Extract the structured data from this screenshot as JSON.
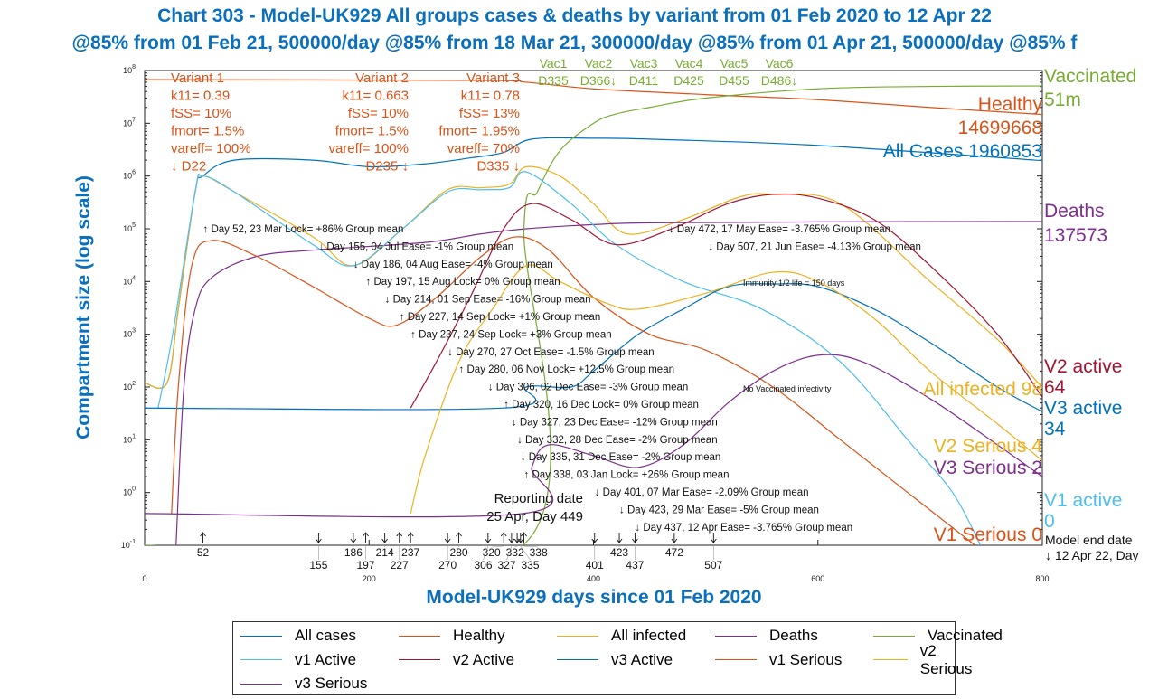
{
  "chart_data": {
    "type": "line",
    "title": "Chart 303 - Model-UK929 All groups cases & deaths by variant from 01 Feb 2020 to 12 Apr 22",
    "subtitle": "@85% from 01 Feb 21, 500000/day @85% from 18 Mar 21, 300000/day @85% from 01 Apr 21, 500000/day @85% f",
    "xlabel": "Model-UK929 days since 01 Feb 2020",
    "ylabel": "Compartment size (log scale)",
    "xlim": [
      0,
      800
    ],
    "ylim": [
      0.1,
      100000000
    ],
    "yscale": "log",
    "xticks": [
      "0",
      "200",
      "400",
      "600",
      "800"
    ],
    "yticks": [
      "10^-1",
      "10^0",
      "10^1",
      "10^2",
      "10^3",
      "10^4",
      "10^5",
      "10^6",
      "10^7",
      "10^8"
    ],
    "grid": false,
    "legend_position": "bottom",
    "series": [
      {
        "name": "All cases",
        "color": "#0072BD",
        "points": [
          [
            0,
            120
          ],
          [
            20,
            120
          ],
          [
            30,
            3000
          ],
          [
            45,
            500000
          ],
          [
            52,
            1000000
          ],
          [
            80,
            2000000
          ],
          [
            150,
            2000000
          ],
          [
            200,
            1500000
          ],
          [
            250,
            1700000
          ],
          [
            290,
            2200000
          ],
          [
            320,
            2800000
          ],
          [
            345,
            5000000
          ],
          [
            400,
            5200000
          ],
          [
            450,
            5000000
          ],
          [
            600,
            3800000
          ],
          [
            800,
            1960853
          ]
        ]
      },
      {
        "name": "Healthy",
        "color": "#D95319",
        "points": [
          [
            0,
            67000000
          ],
          [
            300,
            65000000
          ],
          [
            340,
            60000000
          ],
          [
            400,
            45000000
          ],
          [
            500,
            35000000
          ],
          [
            600,
            28000000
          ],
          [
            700,
            20000000
          ],
          [
            800,
            14699668
          ]
        ]
      },
      {
        "name": "All infected",
        "color": "#EDB120",
        "points": [
          [
            0,
            120
          ],
          [
            20,
            120
          ],
          [
            30,
            3000
          ],
          [
            45,
            500000
          ],
          [
            52,
            1000000
          ],
          [
            80,
            500000
          ],
          [
            150,
            70000
          ],
          [
            186,
            20000
          ],
          [
            230,
            100000
          ],
          [
            270,
            550000
          ],
          [
            300,
            600000
          ],
          [
            325,
            700000
          ],
          [
            340,
            1500000
          ],
          [
            370,
            1000000
          ],
          [
            400,
            300000
          ],
          [
            430,
            80000
          ],
          [
            480,
            150000
          ],
          [
            530,
            400000
          ],
          [
            560,
            450000
          ],
          [
            620,
            300000
          ],
          [
            700,
            10000
          ],
          [
            760,
            800
          ],
          [
            800,
            98
          ]
        ]
      },
      {
        "name": "Deaths",
        "color": "#7E2F8E",
        "points": [
          [
            28,
            0.1
          ],
          [
            35,
            100
          ],
          [
            45,
            3000
          ],
          [
            60,
            12000
          ],
          [
            100,
            30000
          ],
          [
            155,
            40000
          ],
          [
            250,
            55000
          ],
          [
            300,
            80000
          ],
          [
            340,
            100000
          ],
          [
            400,
            120000
          ],
          [
            450,
            130000
          ],
          [
            600,
            135000
          ],
          [
            800,
            137573
          ]
        ]
      },
      {
        "name": "Vaccinated",
        "color": "#77AC30",
        "points": [
          [
            0,
            0.1
          ],
          [
            337,
            0.1
          ],
          [
            338,
            100000
          ],
          [
            350,
            500000
          ],
          [
            370,
            3000000
          ],
          [
            400,
            10000000
          ],
          [
            420,
            15000000
          ],
          [
            450,
            20000000
          ],
          [
            500,
            30000000
          ],
          [
            600,
            45000000
          ],
          [
            700,
            50000000
          ],
          [
            800,
            51000000
          ]
        ]
      },
      {
        "name": "v1 Active",
        "color": "#4DBEEE",
        "points": [
          [
            12,
            40
          ],
          [
            25,
            1000
          ],
          [
            45,
            500000
          ],
          [
            52,
            1000000
          ],
          [
            80,
            500000
          ],
          [
            150,
            50000
          ],
          [
            186,
            20000
          ],
          [
            230,
            100000
          ],
          [
            270,
            500000
          ],
          [
            300,
            550000
          ],
          [
            325,
            600000
          ],
          [
            340,
            1200000
          ],
          [
            380,
            300000
          ],
          [
            420,
            50000
          ],
          [
            480,
            10000
          ],
          [
            550,
            3000
          ],
          [
            620,
            300
          ],
          [
            680,
            10
          ],
          [
            720,
            1
          ],
          [
            745,
            0.1
          ]
        ]
      },
      {
        "name": "v2 Active",
        "color": "#A2142F",
        "points": [
          [
            237,
            40
          ],
          [
            260,
            300
          ],
          [
            290,
            5000
          ],
          [
            320,
            100000
          ],
          [
            345,
            300000
          ],
          [
            380,
            150000
          ],
          [
            420,
            50000
          ],
          [
            470,
            100000
          ],
          [
            520,
            300000
          ],
          [
            560,
            450000
          ],
          [
            600,
            380000
          ],
          [
            650,
            150000
          ],
          [
            700,
            20000
          ],
          [
            760,
            1000
          ],
          [
            800,
            64
          ]
        ]
      },
      {
        "name": "v3 Active",
        "color": "#0072BD",
        "points": [
          [
            0,
            40
          ],
          [
            320,
            40
          ],
          [
            340,
            100
          ],
          [
            380,
            100
          ],
          [
            400,
            200
          ],
          [
            440,
            1000
          ],
          [
            480,
            3000
          ],
          [
            520,
            8000
          ],
          [
            560,
            9000
          ],
          [
            600,
            8000
          ],
          [
            650,
            3000
          ],
          [
            700,
            700
          ],
          [
            760,
            100
          ],
          [
            800,
            34
          ]
        ]
      },
      {
        "name": "v1 Serious",
        "color": "#D95319",
        "points": [
          [
            24,
            0.4
          ],
          [
            30,
            100
          ],
          [
            42,
            20000
          ],
          [
            60,
            60000
          ],
          [
            100,
            30000
          ],
          [
            150,
            8000
          ],
          [
            200,
            2000
          ],
          [
            225,
            1500
          ],
          [
            260,
            5000
          ],
          [
            300,
            30000
          ],
          [
            330,
            70000
          ],
          [
            360,
            40000
          ],
          [
            400,
            5000
          ],
          [
            450,
            1000
          ],
          [
            500,
            500
          ],
          [
            560,
            100
          ],
          [
            620,
            10
          ],
          [
            680,
            1
          ],
          [
            740,
            0.1
          ]
        ]
      },
      {
        "name": "v2 Serious",
        "color": "#EDB120",
        "points": [
          [
            237,
            0.4
          ],
          [
            250,
            5
          ],
          [
            280,
            300
          ],
          [
            310,
            3000
          ],
          [
            340,
            20000
          ],
          [
            370,
            10000
          ],
          [
            410,
            4000
          ],
          [
            440,
            3000
          ],
          [
            500,
            6000
          ],
          [
            560,
            15000
          ],
          [
            600,
            10000
          ],
          [
            650,
            2000
          ],
          [
            700,
            200
          ],
          [
            760,
            20
          ],
          [
            800,
            4
          ]
        ]
      },
      {
        "name": "v3 Serious",
        "color": "#7E2F8E",
        "points": [
          [
            0,
            0.4
          ],
          [
            337,
            0.4
          ],
          [
            345,
            3
          ],
          [
            360,
            8
          ],
          [
            400,
            5
          ],
          [
            440,
            3
          ],
          [
            480,
            8
          ],
          [
            520,
            50
          ],
          [
            560,
            200
          ],
          [
            600,
            400
          ],
          [
            640,
            300
          ],
          [
            700,
            60
          ],
          [
            760,
            8
          ],
          [
            800,
            2
          ]
        ]
      }
    ],
    "annotations": [
      {
        "day": 52,
        "arrow": "↑",
        "text": "Day 52, 23 Mar Lock= +86% Group mean"
      },
      {
        "day": 155,
        "arrow": "↓",
        "text": "Day 155, 04 Jul Ease= -1% Group mean"
      },
      {
        "day": 186,
        "arrow": "↓",
        "text": "Day 186, 04 Aug Ease= -4% Group mean"
      },
      {
        "day": 197,
        "arrow": "↑",
        "text": "Day 197, 15 Aug Lock= 0% Group mean"
      },
      {
        "day": 214,
        "arrow": "↓",
        "text": "Day 214, 01 Sep Ease= -16% Group mean"
      },
      {
        "day": 227,
        "arrow": "↑",
        "text": "Day 227, 14 Sep Lock= +1% Group mean"
      },
      {
        "day": 237,
        "arrow": "↑",
        "text": "Day 237, 24 Sep Lock= +3% Group mean"
      },
      {
        "day": 270,
        "arrow": "↓",
        "text": "Day 270, 27 Oct Ease= -1.5% Group mean"
      },
      {
        "day": 280,
        "arrow": "↑",
        "text": "Day 280, 06 Nov Lock= +12.5% Group mean"
      },
      {
        "day": 306,
        "arrow": "↓",
        "text": "Day 306, 02 Dec Ease= -3% Group mean"
      },
      {
        "day": 320,
        "arrow": "↑",
        "text": "Day 320, 16 Dec Lock= 0% Group mean"
      },
      {
        "day": 327,
        "arrow": "↓",
        "text": "Day 327, 23 Dec Ease= -12% Group mean"
      },
      {
        "day": 332,
        "arrow": "↓",
        "text": "Day 332, 28 Dec Ease= -2% Group mean"
      },
      {
        "day": 335,
        "arrow": "↓",
        "text": "Day 335, 31 Dec Ease= -2% Group mean"
      },
      {
        "day": 338,
        "arrow": "↑",
        "text": "Day 338, 03 Jan Lock= +26% Group mean"
      },
      {
        "day": 401,
        "arrow": "↓",
        "text": "Day 401, 07 Mar Ease= -2.09% Group mean"
      },
      {
        "day": 423,
        "arrow": "↓",
        "text": "Day 423, 29 Mar Ease= -5% Group mean"
      },
      {
        "day": 437,
        "arrow": "↓",
        "text": "Day 437, 12 Apr Ease= -3.765% Group mean"
      },
      {
        "day": 472,
        "arrow": "↓",
        "text": "Day 472, 17 May Ease= -3.765% Group mean"
      },
      {
        "day": 507,
        "arrow": "↓",
        "text": "Day 507, 21 Jun Ease= -4.13% Group mean"
      }
    ],
    "variants": [
      {
        "lines": [
          "Variant 1",
          "k11= 0.39",
          "fSS= 10%",
          "fmort= 1.5%",
          "vareff= 100%",
          "↓ D22"
        ]
      },
      {
        "lines": [
          "Variant 2",
          "k11= 0.663",
          "fSS= 10%",
          "fmort= 1.5%",
          "vareff= 100%",
          "D235 ↓"
        ]
      },
      {
        "lines": [
          "Variant 3",
          "k11= 0.78",
          "fSS= 13%",
          "fmort= 1.95%",
          "vareff= 70%",
          "D335 ↓"
        ]
      }
    ],
    "vaccinations": [
      {
        "label": "Vac1",
        "date": "D335"
      },
      {
        "label": "Vac2",
        "date": "D366↓"
      },
      {
        "label": "Vac3",
        "date": "D411"
      },
      {
        "label": "Vac4",
        "date": "D425"
      },
      {
        "label": "Vac5",
        "date": "D455"
      },
      {
        "label": "Vac6",
        "date": "D486↓"
      }
    ],
    "notes": {
      "immunity": "Immunity 1/2 life = 150 days",
      "no_vacc": "No Vaccinated infectivity",
      "reporting_1": "Reporting date",
      "reporting_2": "25 Apr, Day 449",
      "model_end_1": "Model end date",
      "model_end_2": "↓ 12 Apr 22, Day"
    },
    "end_labels": [
      {
        "lines": [
          "Vaccinated",
          "51m"
        ],
        "color": "#77AC30"
      },
      {
        "lines": [
          "Healthy",
          "14699668"
        ],
        "color": "#D95319"
      },
      {
        "lines": [
          "All Cases 1960853"
        ],
        "color": "#0072BD"
      },
      {
        "lines": [
          "Deaths",
          "137573"
        ],
        "color": "#7E2F8E"
      },
      {
        "lines": [
          "V2 active",
          "64"
        ],
        "color": "#A2142F"
      },
      {
        "lines": [
          "V3 active",
          "34"
        ],
        "color": "#0072BD"
      },
      {
        "lines": [
          "All infected 98"
        ],
        "color": "#EDB120"
      },
      {
        "lines": [
          "V2 Serious 4"
        ],
        "color": "#EDB120"
      },
      {
        "lines": [
          "V3 Serious 2"
        ],
        "color": "#7E2F8E"
      },
      {
        "lines": [
          "V1 active",
          "0"
        ],
        "color": "#4DBEEE"
      },
      {
        "lines": [
          "V1 Serious 0"
        ],
        "color": "#D95319"
      }
    ]
  }
}
